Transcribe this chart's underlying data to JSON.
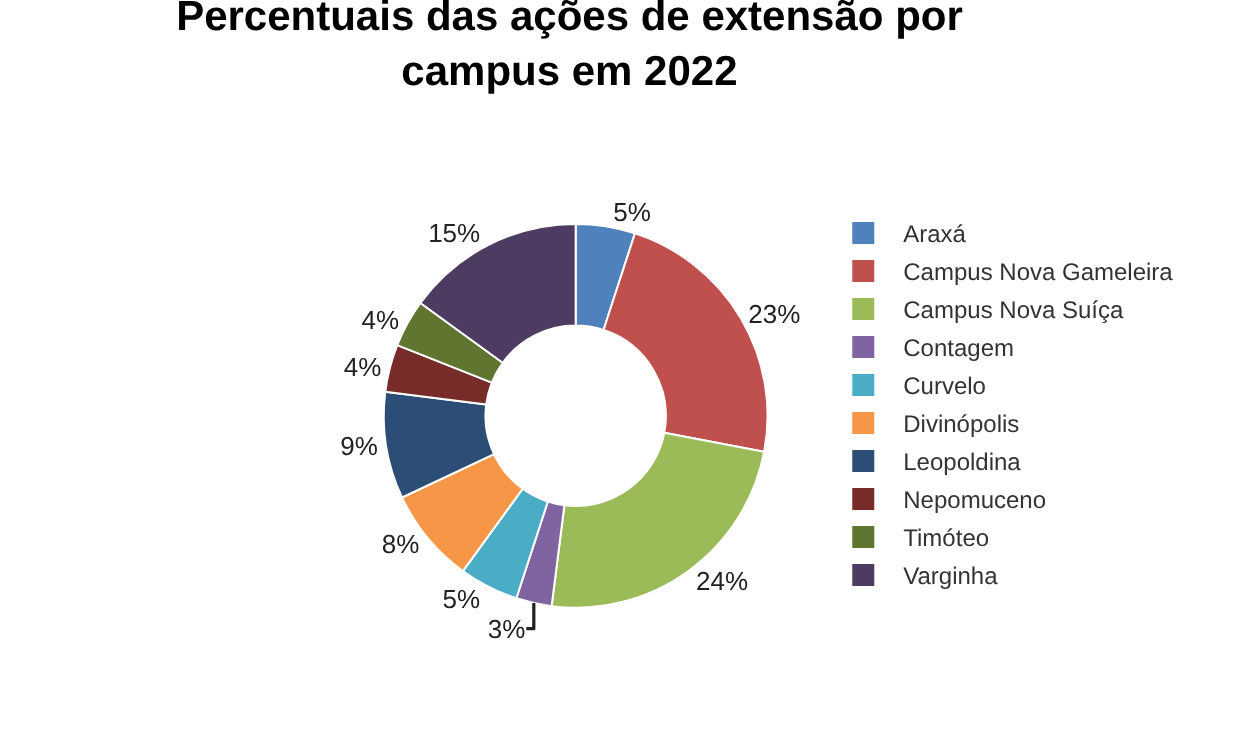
{
  "chart_data": {
    "type": "donut",
    "title": "Percentuais das ações de extensão por campus em 2022",
    "categories": [
      "Araxá",
      "Campus Nova Gameleira",
      "Campus Nova Suíça",
      "Contagem",
      "Curvelo",
      "Divinópolis",
      "Leopoldina",
      "Nepomuceno",
      "Timóteo",
      "Varginha"
    ],
    "values": [
      5,
      23,
      24,
      3,
      5,
      8,
      9,
      4,
      4,
      15
    ],
    "value_labels": [
      "5%",
      "23%",
      "24%",
      "3%",
      "5%",
      "8%",
      "9%",
      "4%",
      "4%",
      "15%"
    ],
    "colors": [
      "#4f81bd",
      "#c0504d",
      "#9bbb59",
      "#8064a2",
      "#4bacc6",
      "#f79646",
      "#2c4d75",
      "#772c2a",
      "#5f7530",
      "#4d3b62"
    ],
    "legend": "right"
  }
}
